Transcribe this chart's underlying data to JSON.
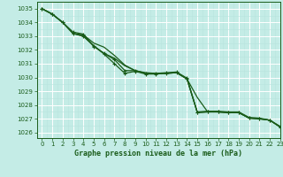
{
  "title": "Graphe pression niveau de la mer (hPa)",
  "bg_color": "#c4ece6",
  "grid_color_major": "#ffffff",
  "grid_color_minor": "#b8e4de",
  "line_color": "#1a5c1a",
  "xlim": [
    -0.5,
    23
  ],
  "ylim": [
    1025.6,
    1035.5
  ],
  "yticks": [
    1026,
    1027,
    1028,
    1029,
    1030,
    1031,
    1032,
    1033,
    1034,
    1035
  ],
  "xticks": [
    0,
    1,
    2,
    3,
    4,
    5,
    6,
    7,
    8,
    9,
    10,
    11,
    12,
    13,
    14,
    15,
    16,
    17,
    18,
    19,
    20,
    21,
    22,
    23
  ],
  "series": [
    {
      "x": [
        0,
        1,
        2,
        3,
        4,
        5,
        6,
        7,
        8,
        9,
        10,
        11,
        12,
        13,
        14,
        15,
        16,
        17,
        18,
        19,
        20,
        21,
        22,
        23
      ],
      "y": [
        1035.0,
        1034.6,
        1034.0,
        1033.3,
        1033.15,
        1032.25,
        1031.75,
        1031.3,
        1030.5,
        1030.5,
        1030.3,
        1030.3,
        1030.35,
        1030.4,
        1029.95,
        1027.45,
        1027.5,
        1027.5,
        1027.45,
        1027.45,
        1027.05,
        1027.0,
        1026.9,
        1026.4
      ],
      "marker": true,
      "lw": 0.9
    },
    {
      "x": [
        0,
        1,
        2,
        3,
        4,
        5,
        6,
        7,
        8,
        9,
        10,
        11,
        12,
        13,
        14,
        15,
        16,
        17,
        18,
        19,
        20,
        21,
        22,
        23
      ],
      "y": [
        1035.0,
        1034.6,
        1034.0,
        1033.2,
        1033.1,
        1032.5,
        1032.2,
        1031.6,
        1030.9,
        1030.5,
        1030.35,
        1030.3,
        1030.3,
        1030.35,
        1029.9,
        1028.55,
        1027.5,
        1027.5,
        1027.45,
        1027.45,
        1027.05,
        1027.0,
        1026.9,
        1026.4
      ],
      "marker": false,
      "lw": 0.9
    },
    {
      "x": [
        0,
        1,
        2,
        3,
        4,
        5,
        6,
        7,
        8,
        9,
        10,
        11,
        12,
        13,
        14,
        15,
        16,
        17,
        18,
        19,
        20,
        21,
        22,
        23
      ],
      "y": [
        1035.0,
        1034.6,
        1034.0,
        1033.2,
        1033.0,
        1032.3,
        1031.75,
        1031.4,
        1030.85,
        1030.5,
        1030.3,
        1030.3,
        1030.3,
        1030.35,
        1029.9,
        1027.5,
        1027.55,
        1027.55,
        1027.5,
        1027.5,
        1027.1,
        1027.05,
        1026.9,
        1026.4
      ],
      "marker": false,
      "lw": 0.9
    },
    {
      "x": [
        0,
        1,
        2,
        3,
        4,
        5,
        6,
        7,
        8,
        9,
        10,
        11,
        12,
        13,
        14,
        15,
        16,
        17,
        18,
        19,
        20,
        21,
        22,
        23
      ],
      "y": [
        1035.0,
        1034.6,
        1034.0,
        1033.2,
        1033.0,
        1032.3,
        1031.7,
        1031.0,
        1030.3,
        1030.45,
        1030.25,
        1030.25,
        1030.3,
        1030.35,
        1029.9,
        1027.45,
        1027.5,
        1027.5,
        1027.45,
        1027.45,
        1027.05,
        1027.0,
        1026.9,
        1026.45
      ],
      "marker": true,
      "lw": 0.9
    }
  ]
}
